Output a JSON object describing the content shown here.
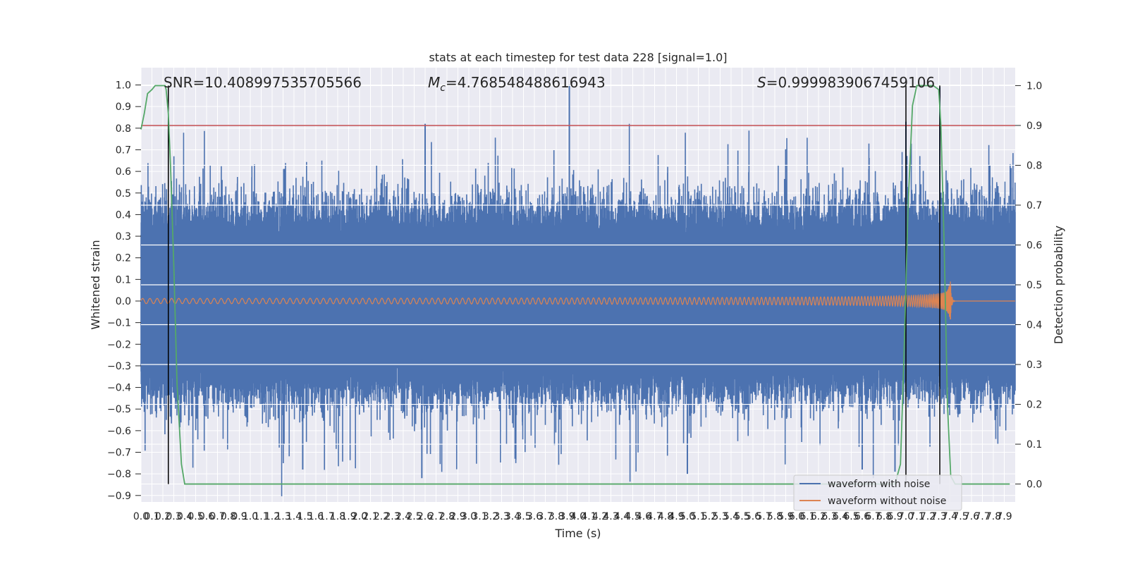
{
  "chart_data": {
    "type": "line",
    "title": "stats at each timestep for test data 228 [signal=1.0]",
    "xlabel": "Time (s)",
    "ylabel": "Whitened strain",
    "ylabel_right": "Detection probability",
    "xlim": [
      0,
      8.0
    ],
    "ylim_left": [
      -0.93,
      1.08
    ],
    "ylim_right": [
      -0.045,
      1.045
    ],
    "x_ticks": [
      "0.0",
      "0.1",
      "0.2",
      "0.3",
      "0.4",
      "0.5",
      "0.6",
      "0.7",
      "0.8",
      "0.9",
      "1.0",
      "1.1",
      "1.2",
      "1.3",
      "1.4",
      "1.5",
      "1.6",
      "1.7",
      "1.8",
      "1.9",
      "2.0",
      "2.1",
      "2.2",
      "2.3",
      "2.4",
      "2.5",
      "2.6",
      "2.7",
      "2.8",
      "2.9",
      "3.0",
      "3.1",
      "3.2",
      "3.3",
      "3.4",
      "3.5",
      "3.6",
      "3.7",
      "3.8",
      "3.9",
      "4.0",
      "4.1",
      "4.2",
      "4.3",
      "4.4",
      "4.5",
      "4.6",
      "4.7",
      "4.8",
      "4.9",
      "5.0",
      "5.1",
      "5.2",
      "5.3",
      "5.4",
      "5.5",
      "5.6",
      "5.7",
      "5.8",
      "5.9",
      "6.0",
      "6.1",
      "6.2",
      "6.3",
      "6.4",
      "6.5",
      "6.6",
      "6.7",
      "6.8",
      "6.9",
      "7.0",
      "7.1",
      "7.2",
      "7.3",
      "7.4",
      "7.5",
      "7.6",
      "7.7",
      "7.8",
      "7.9"
    ],
    "y_ticks_left": [
      "−0.9",
      "−0.8",
      "−0.7",
      "−0.6",
      "−0.5",
      "−0.4",
      "−0.3",
      "−0.2",
      "−0.1",
      "0.0",
      "0.1",
      "0.2",
      "0.3",
      "0.4",
      "0.5",
      "0.6",
      "0.7",
      "0.8",
      "0.9",
      "1.0"
    ],
    "y_ticks_right": [
      "0.0",
      "0.1",
      "0.2",
      "0.3",
      "0.4",
      "0.5",
      "0.6",
      "0.7",
      "0.8",
      "0.9",
      "1.0"
    ],
    "grid": true,
    "legend_position": "lower right",
    "annotations": {
      "snr": "SNR=10.408997535705566",
      "mc_symbol": "M",
      "mc_sub": "c",
      "mc_value": "=4.768548488616943",
      "s_symbol": "S",
      "s_value": "=0.9999839067459106"
    },
    "threshold": 0.9,
    "vertical_markers_s": [
      0.25,
      7.0,
      7.31
    ],
    "series": [
      {
        "name": "waveform with noise",
        "color": "#4c72b0",
        "axis": "left",
        "description_values": {
          "x_range": [
            0.0,
            8.0
          ],
          "typical_envelope": [
            -0.45,
            0.45
          ],
          "spikes": [
            [
              3.92,
              1.0
            ],
            [
              2.6,
              0.82
            ],
            [
              7.0,
              0.83
            ],
            [
              7.31,
              0.99
            ],
            [
              2.57,
              -0.82
            ],
            [
              5.0,
              -0.8
            ],
            [
              1.48,
              -0.78
            ],
            [
              6.6,
              -0.78
            ],
            [
              6.9,
              -0.79
            ]
          ]
        }
      },
      {
        "name": "waveform without noise",
        "color": "#dd8452",
        "axis": "left",
        "merger_time": 7.4,
        "amplitude_start": 0.012,
        "amplitude_peak": 0.2,
        "post_merger_value": 0.0
      },
      {
        "name": "",
        "color": "#55a868",
        "axis": "right",
        "x": [
          0.0,
          0.03,
          0.06,
          0.1,
          0.13,
          0.17,
          0.2,
          0.22,
          0.23,
          0.25,
          0.27,
          0.3,
          0.33,
          0.37,
          0.4,
          0.5,
          1.0,
          2.0,
          3.0,
          4.0,
          5.0,
          6.0,
          6.9,
          6.95,
          6.98,
          7.02,
          7.06,
          7.1,
          7.15,
          7.2,
          7.25,
          7.3,
          7.32,
          7.35,
          7.38,
          7.41,
          7.45,
          7.5,
          7.6,
          7.7,
          7.8,
          7.95
        ],
        "y": [
          0.89,
          0.93,
          0.98,
          0.99,
          1.0,
          1.0,
          1.0,
          1.0,
          0.99,
          0.93,
          0.8,
          0.55,
          0.25,
          0.05,
          0.0,
          0.0,
          0.0,
          0.0,
          0.0,
          0.0,
          0.0,
          0.0,
          0.0,
          0.05,
          0.3,
          0.7,
          0.95,
          1.0,
          1.0,
          1.0,
          1.0,
          0.99,
          0.9,
          0.6,
          0.2,
          0.02,
          0.0,
          0.0,
          0.0,
          0.0,
          0.0,
          0.0
        ]
      }
    ]
  }
}
